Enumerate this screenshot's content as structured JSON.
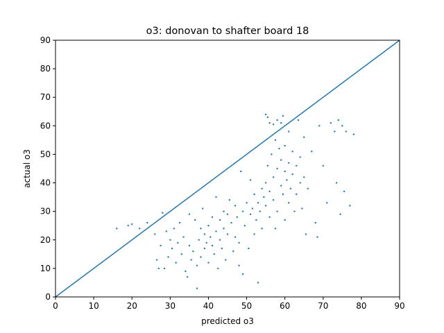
{
  "chart_data": {
    "type": "scatter",
    "title": "o3: donovan to shafter board 18",
    "xlabel": "predicted o3",
    "ylabel": "actual o3",
    "xlim": [
      0,
      90
    ],
    "ylim": [
      0,
      90
    ],
    "xticks": [
      0,
      10,
      20,
      30,
      40,
      50,
      60,
      70,
      80,
      90
    ],
    "yticks": [
      0,
      10,
      20,
      30,
      40,
      50,
      60,
      70,
      80,
      90
    ],
    "grid": false,
    "colors": {
      "points": "#1f77b4",
      "line": "#1f77b4",
      "axes": "#000000"
    },
    "reference_line": {
      "x": [
        0,
        90
      ],
      "y": [
        0,
        90
      ]
    },
    "points": [
      [
        16,
        24
      ],
      [
        19,
        25
      ],
      [
        20,
        25.5
      ],
      [
        22,
        24
      ],
      [
        24,
        26
      ],
      [
        26,
        22
      ],
      [
        26.5,
        13
      ],
      [
        27,
        10
      ],
      [
        27.5,
        18
      ],
      [
        28,
        29.5
      ],
      [
        28.5,
        10
      ],
      [
        29,
        23
      ],
      [
        29.5,
        14
      ],
      [
        30,
        20
      ],
      [
        30.5,
        17
      ],
      [
        31,
        24
      ],
      [
        31.5,
        12
      ],
      [
        32,
        19
      ],
      [
        32.5,
        26
      ],
      [
        33,
        15
      ],
      [
        33.5,
        21
      ],
      [
        34,
        9
      ],
      [
        34.5,
        7
      ],
      [
        35,
        18
      ],
      [
        35,
        29
      ],
      [
        35.5,
        13
      ],
      [
        36,
        16
      ],
      [
        36.5,
        27
      ],
      [
        37,
        11
      ],
      [
        37,
        3
      ],
      [
        37.5,
        20
      ],
      [
        38,
        24
      ],
      [
        38,
        14
      ],
      [
        38.5,
        31
      ],
      [
        39,
        17
      ],
      [
        39,
        22
      ],
      [
        39.5,
        19
      ],
      [
        40,
        25
      ],
      [
        40,
        12
      ],
      [
        40.5,
        21
      ],
      [
        41,
        18
      ],
      [
        41,
        28
      ],
      [
        41.5,
        15
      ],
      [
        42,
        23
      ],
      [
        42,
        35
      ],
      [
        42.5,
        10
      ],
      [
        43,
        20
      ],
      [
        43,
        27
      ],
      [
        43.5,
        17
      ],
      [
        44,
        30
      ],
      [
        44,
        24
      ],
      [
        44.5,
        13
      ],
      [
        45,
        22
      ],
      [
        45,
        29
      ],
      [
        45.5,
        34
      ],
      [
        46,
        26
      ],
      [
        46.5,
        16
      ],
      [
        47,
        32
      ],
      [
        47,
        21
      ],
      [
        47.5,
        28
      ],
      [
        48,
        11
      ],
      [
        48,
        19
      ],
      [
        48.5,
        44
      ],
      [
        49,
        30
      ],
      [
        49,
        8
      ],
      [
        49.5,
        25
      ],
      [
        50,
        33
      ],
      [
        50.5,
        17
      ],
      [
        51,
        29
      ],
      [
        51,
        41
      ],
      [
        51.5,
        31
      ],
      [
        52,
        22
      ],
      [
        52,
        36
      ],
      [
        52.5,
        27
      ],
      [
        53,
        33
      ],
      [
        53,
        5
      ],
      [
        53.5,
        30
      ],
      [
        54,
        38
      ],
      [
        54,
        24
      ],
      [
        54.5,
        35
      ],
      [
        55,
        40
      ],
      [
        55,
        64
      ],
      [
        55,
        32
      ],
      [
        55.5,
        46
      ],
      [
        56,
        37
      ],
      [
        56,
        61
      ],
      [
        56,
        28
      ],
      [
        56.5,
        50
      ],
      [
        57,
        42
      ],
      [
        57,
        34
      ],
      [
        57.5,
        55
      ],
      [
        57.5,
        24
      ],
      [
        58,
        62
      ],
      [
        58,
        45
      ],
      [
        58,
        30
      ],
      [
        58.5,
        52
      ],
      [
        59,
        39
      ],
      [
        59,
        48
      ],
      [
        59,
        61
      ],
      [
        59.5,
        36
      ],
      [
        60,
        44
      ],
      [
        60,
        53
      ],
      [
        60,
        27
      ],
      [
        60.5,
        41
      ],
      [
        61,
        47
      ],
      [
        61,
        33
      ],
      [
        61,
        58
      ],
      [
        61.5,
        38
      ],
      [
        62,
        43
      ],
      [
        62,
        51
      ],
      [
        62.5,
        30
      ],
      [
        63,
        46
      ],
      [
        63,
        36
      ],
      [
        63.5,
        62
      ],
      [
        64,
        40
      ],
      [
        64,
        49
      ],
      [
        64.5,
        31
      ],
      [
        65,
        56
      ],
      [
        65,
        42
      ],
      [
        65.5,
        22
      ],
      [
        66,
        38
      ],
      [
        67,
        51
      ],
      [
        68,
        26
      ],
      [
        68.5,
        21
      ],
      [
        69,
        60
      ],
      [
        70,
        46
      ],
      [
        71,
        33
      ],
      [
        72,
        61
      ],
      [
        73,
        58
      ],
      [
        73.5,
        40
      ],
      [
        74,
        62
      ],
      [
        74.5,
        29
      ],
      [
        75,
        60
      ],
      [
        75.5,
        37
      ],
      [
        76,
        58
      ],
      [
        77,
        32
      ],
      [
        78,
        57
      ],
      [
        55.5,
        63
      ],
      [
        57,
        60.5
      ],
      [
        59.5,
        63.5
      ]
    ]
  }
}
